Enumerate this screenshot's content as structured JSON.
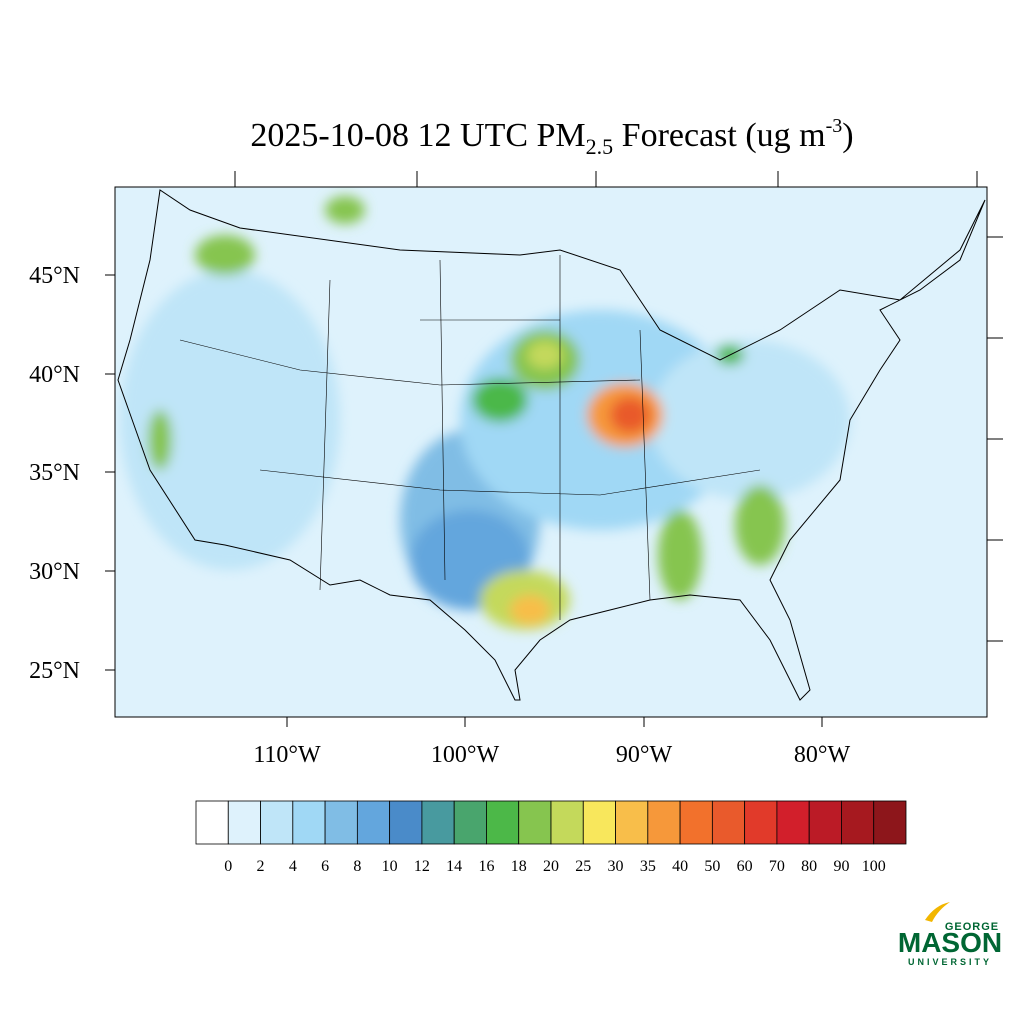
{
  "title": {
    "prefix": "2025-10-08 12 UTC PM",
    "subscript": "2.5",
    "middle": " Forecast (ug m",
    "superscript": "-3",
    "suffix": ")"
  },
  "lat_labels": [
    "45°N",
    "40°N",
    "35°N",
    "30°N",
    "25°N"
  ],
  "lon_labels": [
    "110°W",
    "100°W",
    "90°W",
    "80°W"
  ],
  "colorbar": {
    "levels": [
      0,
      2,
      4,
      6,
      8,
      10,
      12,
      14,
      16,
      18,
      20,
      25,
      30,
      35,
      40,
      50,
      60,
      70,
      80,
      90,
      100
    ],
    "colors": [
      "#ffffff",
      "#def2fc",
      "#bfe5f8",
      "#a0d8f5",
      "#80bde5",
      "#63a6dd",
      "#4a8bc9",
      "#489a9f",
      "#49a56d",
      "#4cb848",
      "#86c54f",
      "#c4d95b",
      "#f8e75c",
      "#f8be4a",
      "#f6983a",
      "#f2712c",
      "#e95a2c",
      "#e13a2a",
      "#d21f2b",
      "#bb1b26",
      "#a6191f",
      "#8d161b"
    ]
  },
  "logo": {
    "top": "GEORGE",
    "main": "MASON",
    "bottom": "UNIVERSITY"
  }
}
